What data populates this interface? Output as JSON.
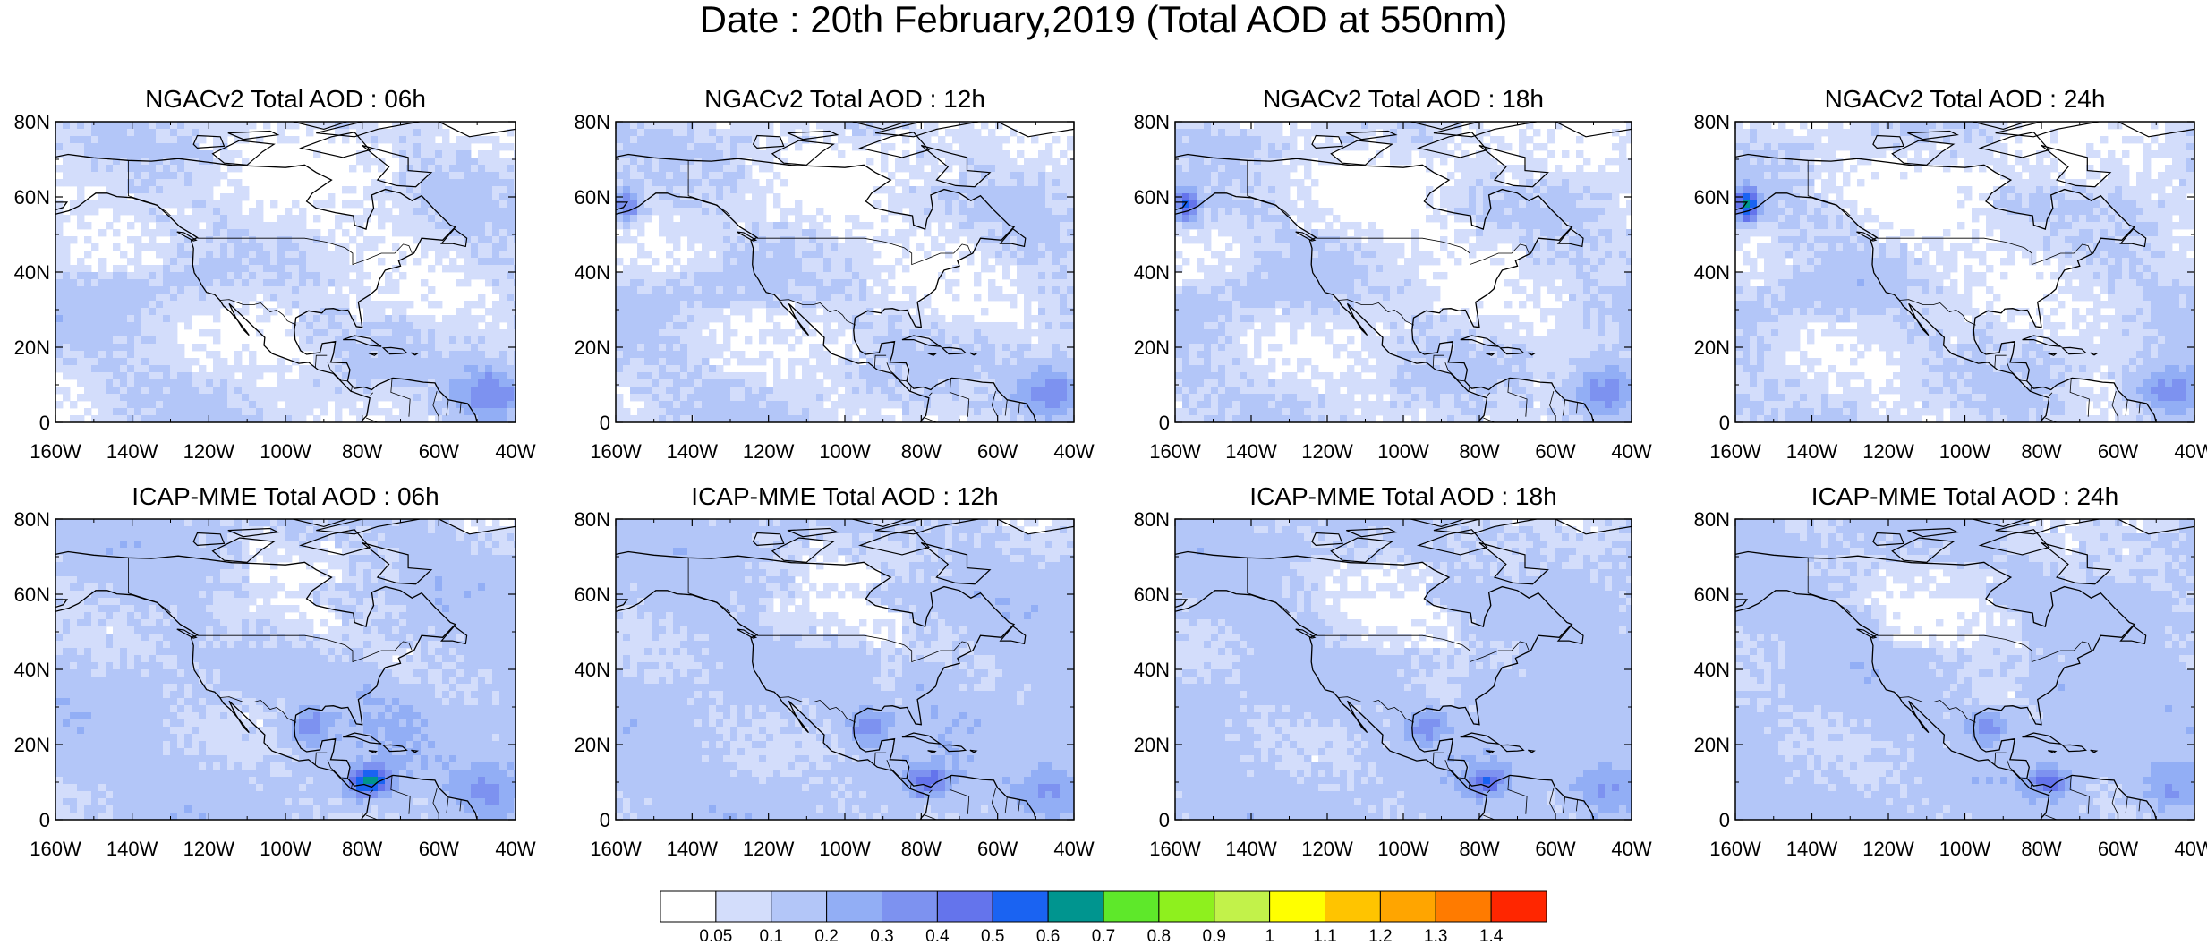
{
  "title": "Date : 20th February,2019 (Total AOD at 550nm)",
  "panels": [
    {
      "title": "NGACv2 Total AOD : 06h",
      "model": "NGACv2",
      "lead": "06h"
    },
    {
      "title": "NGACv2 Total AOD : 12h",
      "model": "NGACv2",
      "lead": "12h"
    },
    {
      "title": "NGACv2 Total AOD : 18h",
      "model": "NGACv2",
      "lead": "18h"
    },
    {
      "title": "NGACv2 Total AOD : 24h",
      "model": "NGACv2",
      "lead": "24h"
    },
    {
      "title": "ICAP-MME Total AOD : 06h",
      "model": "ICAP-MME",
      "lead": "06h"
    },
    {
      "title": "ICAP-MME Total AOD : 12h",
      "model": "ICAP-MME",
      "lead": "12h"
    },
    {
      "title": "ICAP-MME Total AOD : 18h",
      "model": "ICAP-MME",
      "lead": "18h"
    },
    {
      "title": "ICAP-MME Total AOD : 24h",
      "model": "ICAP-MME",
      "lead": "24h"
    }
  ],
  "map_extent": {
    "lon_min": -160,
    "lon_max": -40,
    "lat_min": 0,
    "lat_max": 80
  },
  "lat_ticks": [
    {
      "value": 80,
      "label": "80N"
    },
    {
      "value": 60,
      "label": "60N"
    },
    {
      "value": 40,
      "label": "40N"
    },
    {
      "value": 20,
      "label": "20N"
    },
    {
      "value": 0,
      "label": "0"
    }
  ],
  "lon_ticks": [
    {
      "value": -160,
      "label": "160W"
    },
    {
      "value": -140,
      "label": "140W"
    },
    {
      "value": -120,
      "label": "120W"
    },
    {
      "value": -100,
      "label": "100W"
    },
    {
      "value": -80,
      "label": "80W"
    },
    {
      "value": -60,
      "label": "60W"
    },
    {
      "value": -40,
      "label": "40W"
    }
  ],
  "colorbar": {
    "colors": [
      "#ffffff",
      "#d3ddfb",
      "#b3c6f8",
      "#92aef5",
      "#7d92f0",
      "#6474ec",
      "#1a63f2",
      "#00958f",
      "#5ee82a",
      "#8ef01e",
      "#c2f24a",
      "#ffff00",
      "#ffc400",
      "#ffa500",
      "#ff7b00",
      "#ff2600"
    ],
    "labels": [
      "0.05",
      "0.1",
      "0.2",
      "0.3",
      "0.4",
      "0.5",
      "0.6",
      "0.7",
      "0.8",
      "0.9",
      "1",
      "1.1",
      "1.2",
      "1.3",
      "1.4"
    ]
  }
}
